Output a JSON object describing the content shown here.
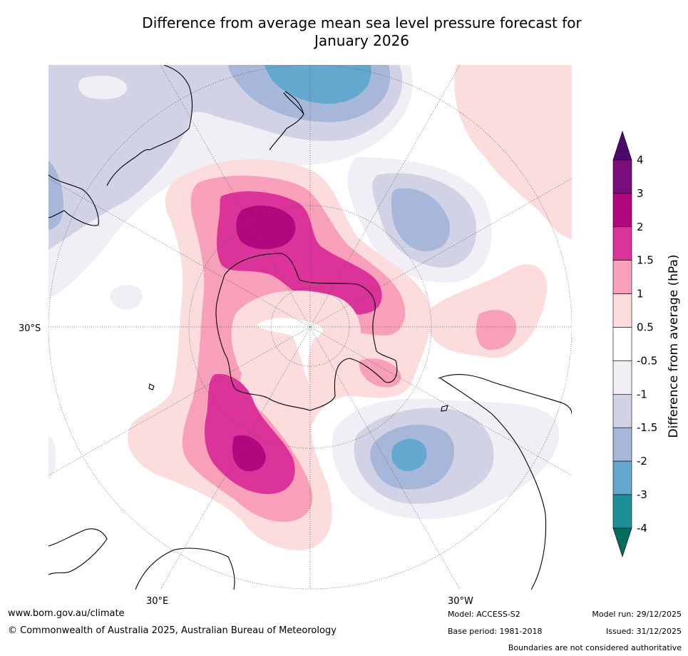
{
  "title": {
    "line1": "Difference from average mean sea level pressure forecast for",
    "line2": "January 2026"
  },
  "map": {
    "lat_label": "30°S",
    "lon_label_left": "30°E",
    "lon_label_right": "30°W"
  },
  "colorbar": {
    "label": "Difference from average (hPa)",
    "ticks": [
      "4",
      "3",
      "2",
      "1.5",
      "1",
      "0.5",
      "-0.5",
      "-1",
      "-1.5",
      "-2",
      "-3",
      "-4"
    ],
    "colors": {
      "above_max": "#4d0a6e",
      "c_3_4": "#7b0d7c",
      "c_2_3": "#b3077f",
      "c_1_5_2": "#dc339a",
      "c_1_1_5": "#f89fb9",
      "c_0_5_1": "#fcdcdc",
      "c_neutral": "#ffffff",
      "c_m1_m0_5": "#f1eef5",
      "c_m1_5_m1": "#d2d2e6",
      "c_m2_m1_5": "#a6b7da",
      "c_m3_m2": "#64a7cf",
      "c_m4_m3": "#1c9096",
      "below_min": "#006d5d"
    }
  },
  "footer": {
    "url": "www.bom.gov.au/climate",
    "copyright": "© Commonwealth of Australia 2025, Australian Bureau of Meteorology",
    "model": "Model: ACCESS-S2",
    "base_period": "Base period: 1981-2018",
    "model_run": "Model run: 29/12/2025",
    "issued": "Issued: 31/12/2025",
    "disclaimer": "Boundaries are not considered authoritative"
  }
}
